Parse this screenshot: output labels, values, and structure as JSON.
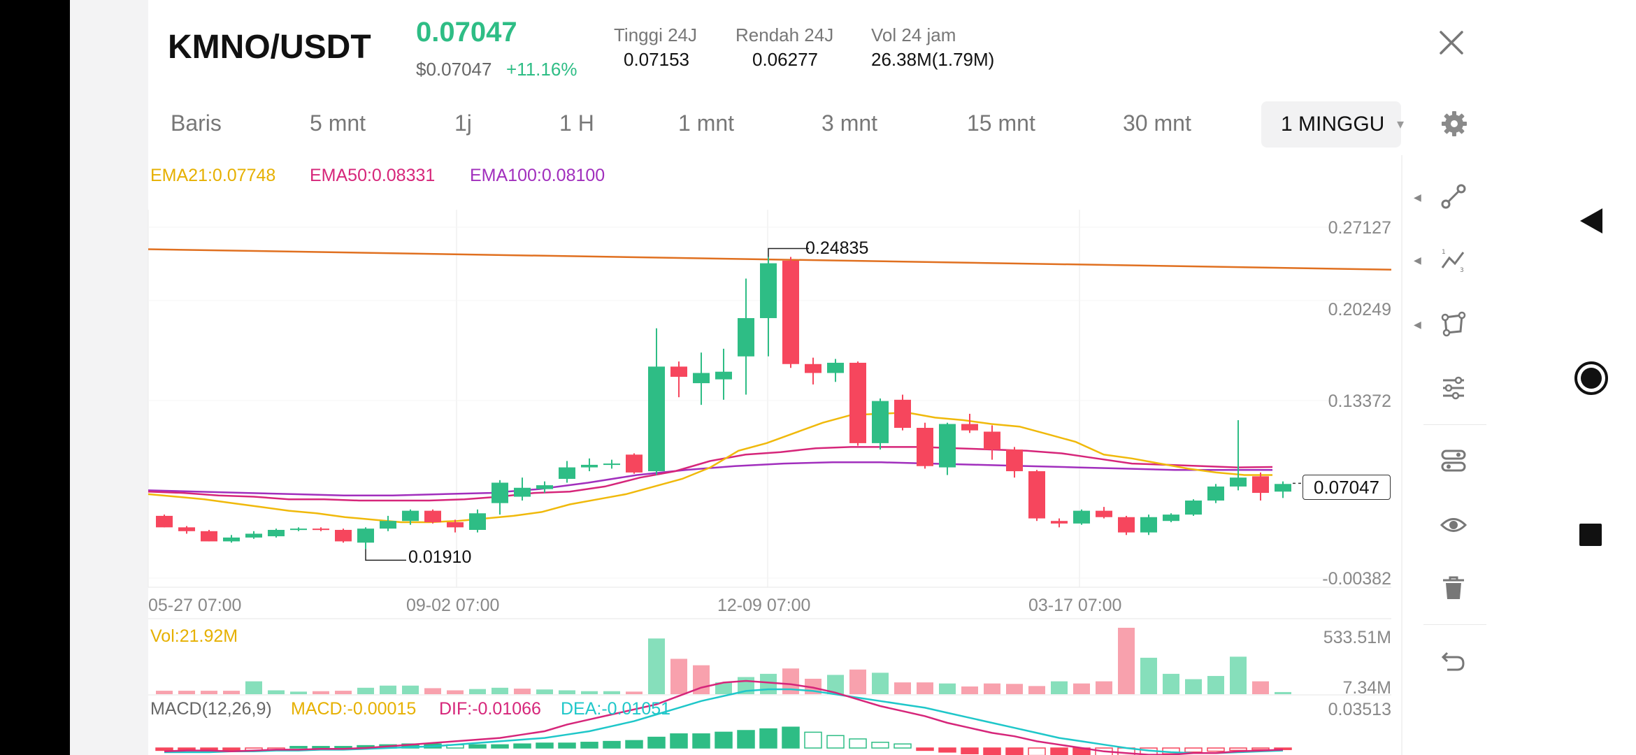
{
  "header": {
    "pair": "KMNO/USDT",
    "price": "0.07047",
    "usd_price": "$0.07047",
    "change": "+11.16%",
    "stats": [
      {
        "label": "Tinggi 24J",
        "value": "0.07153"
      },
      {
        "label": "Rendah 24J",
        "value": "0.06277"
      },
      {
        "label": "Vol 24 jam",
        "value": "26.38M(1.79M)"
      }
    ],
    "close_icon": "close-icon"
  },
  "tabs": [
    {
      "label": "Baris"
    },
    {
      "label": "5 mnt"
    },
    {
      "label": "1j"
    },
    {
      "label": "1 H"
    },
    {
      "label": "1 mnt"
    },
    {
      "label": "3 mnt"
    },
    {
      "label": "15 mnt"
    },
    {
      "label": "30 mnt"
    }
  ],
  "active_tab": "1 MINGGU",
  "indicators": {
    "ema21": "EMA21:0.07748",
    "ema50": "EMA50:0.08331",
    "ema100": "EMA100:0.08100",
    "vol": "Vol:21.92M",
    "macd": {
      "label": "MACD(12,26,9)",
      "macd": "MACD:-0.00015",
      "dif": "DIF:-0.01066",
      "dea": "DEA:-0.01051"
    }
  },
  "price_axis": [
    "0.27127",
    "0.20249",
    "0.13372",
    "-0.00382"
  ],
  "volume_axis": [
    "533.51M",
    "7.34M"
  ],
  "macd_axis": [
    "0.03513"
  ],
  "time_axis": [
    "05-27 07:00",
    "09-02 07:00",
    "12-09 07:00",
    "03-17 07:00"
  ],
  "annotations": {
    "high": "0.24835",
    "low": "0.01910",
    "last": "0.07047"
  },
  "colors": {
    "up": "#2ebd85",
    "down": "#f6465d",
    "ema21": "#f0b90b",
    "ema50": "#d6267a",
    "ema100": "#a12fbd",
    "trend": "#e07020",
    "dea": "#1fc7c9",
    "accent": "#2ebd85"
  },
  "chart_data": {
    "type": "candlestick",
    "interval": "1 MINGGU",
    "ylim": [
      -0.00382,
      0.27127
    ],
    "candles": [
      {
        "o": 0.045,
        "h": 0.046,
        "l": 0.036,
        "c": 0.036
      },
      {
        "o": 0.036,
        "h": 0.037,
        "l": 0.031,
        "c": 0.033
      },
      {
        "o": 0.033,
        "h": 0.034,
        "l": 0.025,
        "c": 0.025
      },
      {
        "o": 0.025,
        "h": 0.03,
        "l": 0.024,
        "c": 0.028
      },
      {
        "o": 0.028,
        "h": 0.033,
        "l": 0.027,
        "c": 0.031
      },
      {
        "o": 0.029,
        "h": 0.035,
        "l": 0.028,
        "c": 0.034
      },
      {
        "o": 0.034,
        "h": 0.036,
        "l": 0.033,
        "c": 0.035
      },
      {
        "o": 0.035,
        "h": 0.036,
        "l": 0.033,
        "c": 0.034
      },
      {
        "o": 0.034,
        "h": 0.035,
        "l": 0.024,
        "c": 0.025
      },
      {
        "o": 0.024,
        "h": 0.036,
        "l": 0.019,
        "c": 0.035
      },
      {
        "o": 0.035,
        "h": 0.045,
        "l": 0.033,
        "c": 0.041
      },
      {
        "o": 0.041,
        "h": 0.05,
        "l": 0.038,
        "c": 0.049
      },
      {
        "o": 0.049,
        "h": 0.05,
        "l": 0.039,
        "c": 0.04
      },
      {
        "o": 0.04,
        "h": 0.042,
        "l": 0.032,
        "c": 0.036
      },
      {
        "o": 0.034,
        "h": 0.05,
        "l": 0.032,
        "c": 0.047
      },
      {
        "o": 0.055,
        "h": 0.073,
        "l": 0.046,
        "c": 0.071
      },
      {
        "o": 0.06,
        "h": 0.075,
        "l": 0.057,
        "c": 0.067
      },
      {
        "o": 0.066,
        "h": 0.072,
        "l": 0.063,
        "c": 0.069
      },
      {
        "o": 0.074,
        "h": 0.088,
        "l": 0.071,
        "c": 0.083
      },
      {
        "o": 0.083,
        "h": 0.09,
        "l": 0.08,
        "c": 0.085
      },
      {
        "o": 0.085,
        "h": 0.089,
        "l": 0.082,
        "c": 0.086
      },
      {
        "o": 0.093,
        "h": 0.094,
        "l": 0.078,
        "c": 0.079
      },
      {
        "o": 0.08,
        "h": 0.192,
        "l": 0.077,
        "c": 0.162
      },
      {
        "o": 0.162,
        "h": 0.166,
        "l": 0.138,
        "c": 0.154
      },
      {
        "o": 0.149,
        "h": 0.173,
        "l": 0.132,
        "c": 0.157
      },
      {
        "o": 0.152,
        "h": 0.176,
        "l": 0.136,
        "c": 0.158
      },
      {
        "o": 0.17,
        "h": 0.231,
        "l": 0.14,
        "c": 0.2
      },
      {
        "o": 0.2,
        "h": 0.248,
        "l": 0.17,
        "c": 0.243
      },
      {
        "o": 0.245,
        "h": 0.248,
        "l": 0.161,
        "c": 0.164
      },
      {
        "o": 0.164,
        "h": 0.169,
        "l": 0.148,
        "c": 0.157
      },
      {
        "o": 0.157,
        "h": 0.168,
        "l": 0.15,
        "c": 0.165
      },
      {
        "o": 0.165,
        "h": 0.166,
        "l": 0.1,
        "c": 0.102
      },
      {
        "o": 0.102,
        "h": 0.137,
        "l": 0.097,
        "c": 0.135
      },
      {
        "o": 0.136,
        "h": 0.14,
        "l": 0.112,
        "c": 0.114
      },
      {
        "o": 0.114,
        "h": 0.118,
        "l": 0.082,
        "c": 0.084
      },
      {
        "o": 0.083,
        "h": 0.118,
        "l": 0.077,
        "c": 0.117
      },
      {
        "o": 0.117,
        "h": 0.125,
        "l": 0.11,
        "c": 0.112
      },
      {
        "o": 0.111,
        "h": 0.116,
        "l": 0.089,
        "c": 0.097
      },
      {
        "o": 0.097,
        "h": 0.099,
        "l": 0.075,
        "c": 0.08
      },
      {
        "o": 0.08,
        "h": 0.081,
        "l": 0.041,
        "c": 0.043
      },
      {
        "o": 0.041,
        "h": 0.043,
        "l": 0.036,
        "c": 0.039
      },
      {
        "o": 0.039,
        "h": 0.05,
        "l": 0.038,
        "c": 0.049
      },
      {
        "o": 0.049,
        "h": 0.052,
        "l": 0.043,
        "c": 0.044
      },
      {
        "o": 0.044,
        "h": 0.045,
        "l": 0.03,
        "c": 0.032
      },
      {
        "o": 0.032,
        "h": 0.046,
        "l": 0.03,
        "c": 0.044
      },
      {
        "o": 0.041,
        "h": 0.047,
        "l": 0.04,
        "c": 0.046
      },
      {
        "o": 0.046,
        "h": 0.058,
        "l": 0.045,
        "c": 0.057
      },
      {
        "o": 0.057,
        "h": 0.07,
        "l": 0.055,
        "c": 0.068
      },
      {
        "o": 0.068,
        "h": 0.12,
        "l": 0.065,
        "c": 0.075
      },
      {
        "o": 0.076,
        "h": 0.079,
        "l": 0.057,
        "c": 0.063
      },
      {
        "o": 0.064,
        "h": 0.072,
        "l": 0.059,
        "c": 0.07
      }
    ],
    "ema21": [
      0.062,
      0.06,
      0.058,
      0.055,
      0.052,
      0.049,
      0.047,
      0.044,
      0.042,
      0.04,
      0.04,
      0.041,
      0.043,
      0.045,
      0.048,
      0.054,
      0.058,
      0.062,
      0.068,
      0.074,
      0.083,
      0.096,
      0.102,
      0.11,
      0.118,
      0.124,
      0.125,
      0.126,
      0.122,
      0.12,
      0.117,
      0.115,
      0.109,
      0.103,
      0.093,
      0.09,
      0.086,
      0.082,
      0.079,
      0.077,
      0.077
    ],
    "ema50": [
      0.064,
      0.063,
      0.061,
      0.06,
      0.058,
      0.058,
      0.057,
      0.057,
      0.057,
      0.058,
      0.06,
      0.063,
      0.064,
      0.068,
      0.075,
      0.08,
      0.088,
      0.093,
      0.095,
      0.098,
      0.099,
      0.099,
      0.099,
      0.098,
      0.097,
      0.096,
      0.094,
      0.09,
      0.086,
      0.085,
      0.084,
      0.083,
      0.0833
    ],
    "ema100": [
      0.065,
      0.064,
      0.063,
      0.062,
      0.061,
      0.061,
      0.062,
      0.063,
      0.066,
      0.071,
      0.077,
      0.081,
      0.084,
      0.086,
      0.087,
      0.087,
      0.086,
      0.085,
      0.084,
      0.083,
      0.082,
      0.081,
      0.081,
      0.081
    ],
    "trendline": [
      0.254,
      0.238
    ],
    "volume": [
      {
        "v": 16,
        "d": true
      },
      {
        "v": 16,
        "d": true
      },
      {
        "v": 16,
        "d": true
      },
      {
        "v": 16,
        "d": true
      },
      {
        "v": 60,
        "d": false
      },
      {
        "v": 18,
        "d": false
      },
      {
        "v": 12,
        "d": false
      },
      {
        "v": 14,
        "d": true
      },
      {
        "v": 16,
        "d": true
      },
      {
        "v": 30,
        "d": false
      },
      {
        "v": 40,
        "d": false
      },
      {
        "v": 40,
        "d": false
      },
      {
        "v": 28,
        "d": true
      },
      {
        "v": 18,
        "d": true
      },
      {
        "v": 24,
        "d": false
      },
      {
        "v": 30,
        "d": false
      },
      {
        "v": 26,
        "d": true
      },
      {
        "v": 22,
        "d": false
      },
      {
        "v": 18,
        "d": false
      },
      {
        "v": 14,
        "d": false
      },
      {
        "v": 14,
        "d": false
      },
      {
        "v": 12,
        "d": true
      },
      {
        "v": 260,
        "d": false
      },
      {
        "v": 165,
        "d": true
      },
      {
        "v": 135,
        "d": true
      },
      {
        "v": 55,
        "d": false
      },
      {
        "v": 80,
        "d": false
      },
      {
        "v": 95,
        "d": false
      },
      {
        "v": 120,
        "d": true
      },
      {
        "v": 72,
        "d": true
      },
      {
        "v": 90,
        "d": false
      },
      {
        "v": 115,
        "d": true
      },
      {
        "v": 100,
        "d": false
      },
      {
        "v": 55,
        "d": true
      },
      {
        "v": 55,
        "d": true
      },
      {
        "v": 50,
        "d": false
      },
      {
        "v": 36,
        "d": true
      },
      {
        "v": 50,
        "d": true
      },
      {
        "v": 48,
        "d": true
      },
      {
        "v": 38,
        "d": true
      },
      {
        "v": 60,
        "d": false
      },
      {
        "v": 50,
        "d": true
      },
      {
        "v": 60,
        "d": true
      },
      {
        "v": 310,
        "d": true
      },
      {
        "v": 170,
        "d": false
      },
      {
        "v": 95,
        "d": false
      },
      {
        "v": 70,
        "d": false
      },
      {
        "v": 85,
        "d": false
      },
      {
        "v": 175,
        "d": false
      },
      {
        "v": 60,
        "d": true
      },
      {
        "v": 10,
        "d": false
      }
    ],
    "volume_range": [
      7.34,
      533.51
    ],
    "macd_hist": [
      -2,
      -2,
      -3,
      -3,
      -2,
      -1,
      1,
      1,
      1,
      2,
      3,
      4,
      4,
      3,
      3,
      3,
      4,
      5,
      5,
      6,
      7,
      8,
      12,
      16,
      16,
      18,
      20,
      22,
      24,
      18,
      14,
      10,
      6,
      4,
      -2,
      -4,
      -6,
      -8,
      -9,
      -8,
      -9,
      -10,
      -9,
      -8,
      -7,
      -6,
      -4,
      -3,
      -2,
      -1,
      -1
    ],
    "dif": [
      -4,
      -3,
      -3,
      -4,
      -3,
      -2,
      -2,
      -1,
      -1,
      0,
      2,
      4,
      6,
      8,
      10,
      12,
      16,
      20,
      28,
      34,
      40,
      46,
      52,
      62,
      72,
      78,
      80,
      78,
      76,
      72,
      66,
      58,
      50,
      44,
      38,
      30,
      24,
      18,
      14,
      8,
      4,
      0,
      -4,
      -6,
      -8,
      -8,
      -6,
      -6,
      -4,
      -3,
      -2
    ],
    "dea": [
      -5,
      -5,
      -5,
      -4,
      -4,
      -3,
      -3,
      -2,
      -2,
      -1,
      0,
      1,
      2,
      4,
      6,
      8,
      10,
      12,
      16,
      20,
      26,
      32,
      40,
      48,
      56,
      62,
      68,
      70,
      70,
      68,
      64,
      60,
      56,
      52,
      48,
      42,
      36,
      30,
      24,
      18,
      12,
      8,
      4,
      0,
      -3,
      -5,
      -6,
      -6,
      -5,
      -4,
      -3
    ],
    "macd_ylim": [
      -0.035,
      0.03513
    ]
  },
  "tools": [
    "line-tool-icon",
    "fib-tool-icon",
    "shape-tool-icon",
    "settings-sliders-icon",
    "indicator-icon",
    "eye-icon",
    "trash-icon",
    "undo-icon"
  ],
  "nav": [
    "back-icon",
    "home-icon",
    "recents-icon"
  ]
}
